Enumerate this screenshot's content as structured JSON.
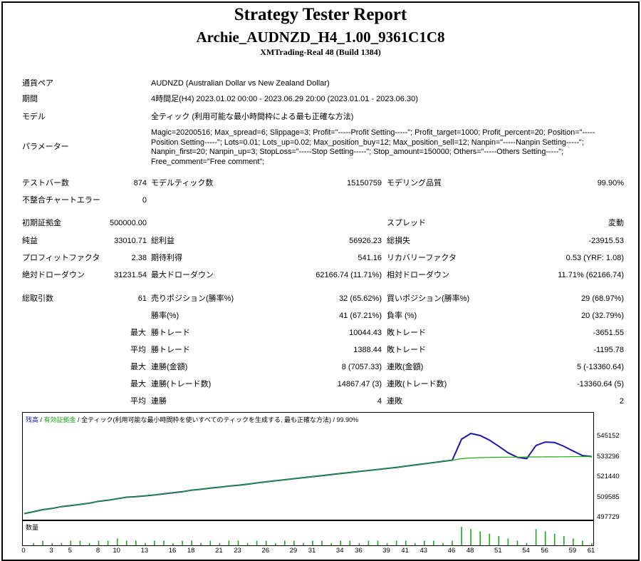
{
  "header": {
    "title": "Strategy Tester Report",
    "ea_name": "Archie_AUDNZD_H4_1.00_9361C1C8",
    "server": "XMTrading-Real 48 (Build 1384)"
  },
  "info": {
    "symbol_label": "通貨ペア",
    "symbol_value": "AUDNZD (Australian Dollar vs New Zealand Dollar)",
    "period_label": "期間",
    "period_value": "4時間足(H4) 2023.01.02 00:00 - 2023.06.29 20:00 (2023.01.01 - 2023.06.30)",
    "model_label": "モデル",
    "model_value": "全ティック (利用可能な最小時間枠による最も正確な方法)",
    "params_label": "パラメーター",
    "params_value": "Magic=20200516; Max_spread=6; Slippage=3; Profit=\"-----Profit Setting-----\"; Profit_target=1000; Profit_percent=20; Position=\"-----Position Setting-----\"; Lots=0.01; Lots_up=0.02; Max_position_buy=12; Max_position_sell=12; Nanpin=\"-----Nanpin Setting-----\"; Nanpin_first=20; Nanpin_up=3; StopLoss=\"-----Stop Setting-----\"; Stop_amount=150000; Others=\"-----Others Setting-----\"; Free_comment=\"Free comment\";"
  },
  "stats": {
    "bars_label": "テストバー数",
    "bars_value": "874",
    "ticks_label": "モデルティック数",
    "ticks_value": "15150759",
    "quality_label": "モデリング品質",
    "quality_value": "99.90%",
    "mismatch_label": "不整合チャートエラー",
    "mismatch_value": "0",
    "deposit_label": "初期証拠金",
    "deposit_value": "500000.00",
    "spread_label": "スプレッド",
    "spread_value": "変動",
    "net_label": "純益",
    "net_value": "33010.71",
    "gross_profit_label": "総利益",
    "gross_profit_value": "56926.23",
    "gross_loss_label": "総損失",
    "gross_loss_value": "-23915.53",
    "pf_label": "プロフィットファクタ",
    "pf_value": "2.38",
    "expected_label": "期待利得",
    "expected_value": "541.16",
    "recovery_label": "リカバリーファクタ",
    "recovery_value": "0.53 (YRF: 1.08)",
    "abs_dd_label": "絶対ドローダウン",
    "abs_dd_value": "31231.54",
    "max_dd_label": "最大ドローダウン",
    "max_dd_value": "62166.74 (11.71%)",
    "rel_dd_label": "相対ドローダウン",
    "rel_dd_value": "11.71% (62166.74)",
    "trades_label": "総取引数",
    "trades_value": "61",
    "short_label": "売りポジション(勝率%)",
    "short_value": "32 (65.62%)",
    "long_label": "買いポジション(勝率%)",
    "long_value": "29 (68.97%)",
    "win_rate_label": "勝率(%)",
    "win_rate_value": "41 (67.21%)",
    "loss_rate_label": "負率 (%)",
    "loss_rate_value": "20 (32.79%)",
    "max_prefix": "最大",
    "avg_prefix": "平均",
    "max_win_label": "勝トレード",
    "max_win_value": "10044.43",
    "max_loss_label": "敗トレード",
    "max_loss_value": "-3651.55",
    "avg_win_label": "勝トレード",
    "avg_win_value": "1388.44",
    "avg_loss_label": "敗トレード",
    "avg_loss_value": "-1195.78",
    "max_consec_win_label": "連勝(金額)",
    "max_consec_win_value": "8 (7057.33)",
    "max_consec_loss_label": "連敗(金額)",
    "max_consec_loss_value": "5 (-13360.64)",
    "max_consec_profit_label": "連勝(トレード数)",
    "max_consec_profit_value": "14867.47 (3)",
    "max_consec_lossamt_label": "連敗(トレード数)",
    "max_consec_lossamt_value": "-13360.64 (5)",
    "avg_consec_win_label": "連勝",
    "avg_consec_win_value": "4",
    "avg_consec_loss_label": "連敗",
    "avg_consec_loss_value": "2"
  },
  "chart": {
    "legend_balance": "残高",
    "legend_equity": "有効証拠金",
    "legend_sep1": " / ",
    "legend_sep2": " / ",
    "legend_model": "全ティック(利用可能な最小時間枠を使いすべてのティックを生成する, 最も正確な方法)",
    "legend_quality": " / 99.90%",
    "volume_label": "数量",
    "balance_color": "#1a1aa8",
    "equity_color": "#1aa81a"
  },
  "chart_data": {
    "type": "line",
    "title": "",
    "ylim": [
      497729,
      551000
    ],
    "yticks": [
      "545152",
      "533296",
      "521440",
      "509585",
      "497729"
    ],
    "xticks": [
      "0",
      "3",
      "5",
      "8",
      "10",
      "13",
      "16",
      "18",
      "21",
      "23",
      "26",
      "29",
      "31",
      "34",
      "36",
      "39",
      "41",
      "43",
      "46",
      "48",
      "51",
      "54",
      "56",
      "59",
      "61"
    ],
    "series": [
      {
        "name": "残高",
        "x": [
          0,
          1,
          2,
          3,
          4,
          5,
          6,
          7,
          8,
          9,
          10,
          11,
          12,
          13,
          14,
          15,
          16,
          17,
          18,
          19,
          20,
          21,
          22,
          23,
          24,
          25,
          26,
          27,
          28,
          29,
          30,
          31,
          32,
          33,
          34,
          35,
          36,
          37,
          38,
          39,
          40,
          41,
          42,
          43,
          44,
          45,
          46,
          47,
          48,
          49,
          50,
          51,
          52,
          53,
          54,
          55,
          56,
          57,
          58,
          59,
          60,
          61
        ],
        "values": [
          500000,
          501100,
          502300,
          503000,
          504100,
          504700,
          505400,
          506100,
          507200,
          507800,
          508700,
          509600,
          509900,
          510400,
          510900,
          511600,
          512200,
          512800,
          513700,
          514200,
          514900,
          515400,
          516100,
          516600,
          517200,
          517900,
          518600,
          519200,
          519800,
          520400,
          521000,
          521600,
          522200,
          522800,
          523400,
          524000,
          524600,
          525200,
          525800,
          526400,
          527000,
          527700,
          528400,
          529100,
          529800,
          530500,
          531200,
          532100,
          532500,
          532700,
          532800,
          532900,
          533000,
          533000,
          533050,
          533100,
          533150,
          533150,
          533200,
          533250,
          533296,
          533296
        ]
      },
      {
        "name": "有効証拠金",
        "x": [
          0,
          1,
          2,
          3,
          4,
          5,
          6,
          7,
          8,
          9,
          10,
          11,
          12,
          13,
          14,
          15,
          16,
          17,
          18,
          19,
          20,
          21,
          22,
          23,
          24,
          25,
          26,
          27,
          28,
          29,
          30,
          31,
          32,
          33,
          34,
          35,
          36,
          37,
          38,
          39,
          40,
          41,
          42,
          43,
          44,
          45,
          46,
          47,
          48,
          49,
          50,
          51,
          52,
          53,
          54,
          55,
          56,
          57,
          58,
          59,
          60,
          61
        ],
        "values": [
          500000,
          501100,
          502300,
          503000,
          504100,
          504700,
          505400,
          506100,
          507200,
          507800,
          508700,
          509600,
          509900,
          510400,
          510900,
          511600,
          512200,
          512800,
          513700,
          514200,
          514900,
          515400,
          516100,
          516600,
          517200,
          517900,
          518600,
          519200,
          519800,
          520400,
          521000,
          521600,
          522200,
          522800,
          523400,
          524000,
          524600,
          525200,
          525800,
          526400,
          527000,
          527700,
          528400,
          529100,
          529800,
          530500,
          531200,
          543500,
          546800,
          545600,
          542900,
          539300,
          535500,
          532900,
          532100,
          539800,
          541800,
          541500,
          539300,
          536500,
          533900,
          533296
        ]
      }
    ],
    "volume": [
      0,
      1,
      2,
      1,
      1,
      2,
      2,
      1,
      2,
      2,
      3,
      2,
      2,
      1,
      2,
      2,
      1,
      2,
      2,
      1,
      2,
      1,
      2,
      2,
      1,
      2,
      2,
      1,
      2,
      2,
      1,
      2,
      2,
      1,
      2,
      2,
      1,
      2,
      2,
      1,
      2,
      2,
      1,
      2,
      2,
      1,
      2,
      8,
      7,
      6,
      5,
      4,
      3,
      2,
      1,
      7,
      6,
      5,
      4,
      3,
      2,
      1
    ],
    "grid": false
  }
}
